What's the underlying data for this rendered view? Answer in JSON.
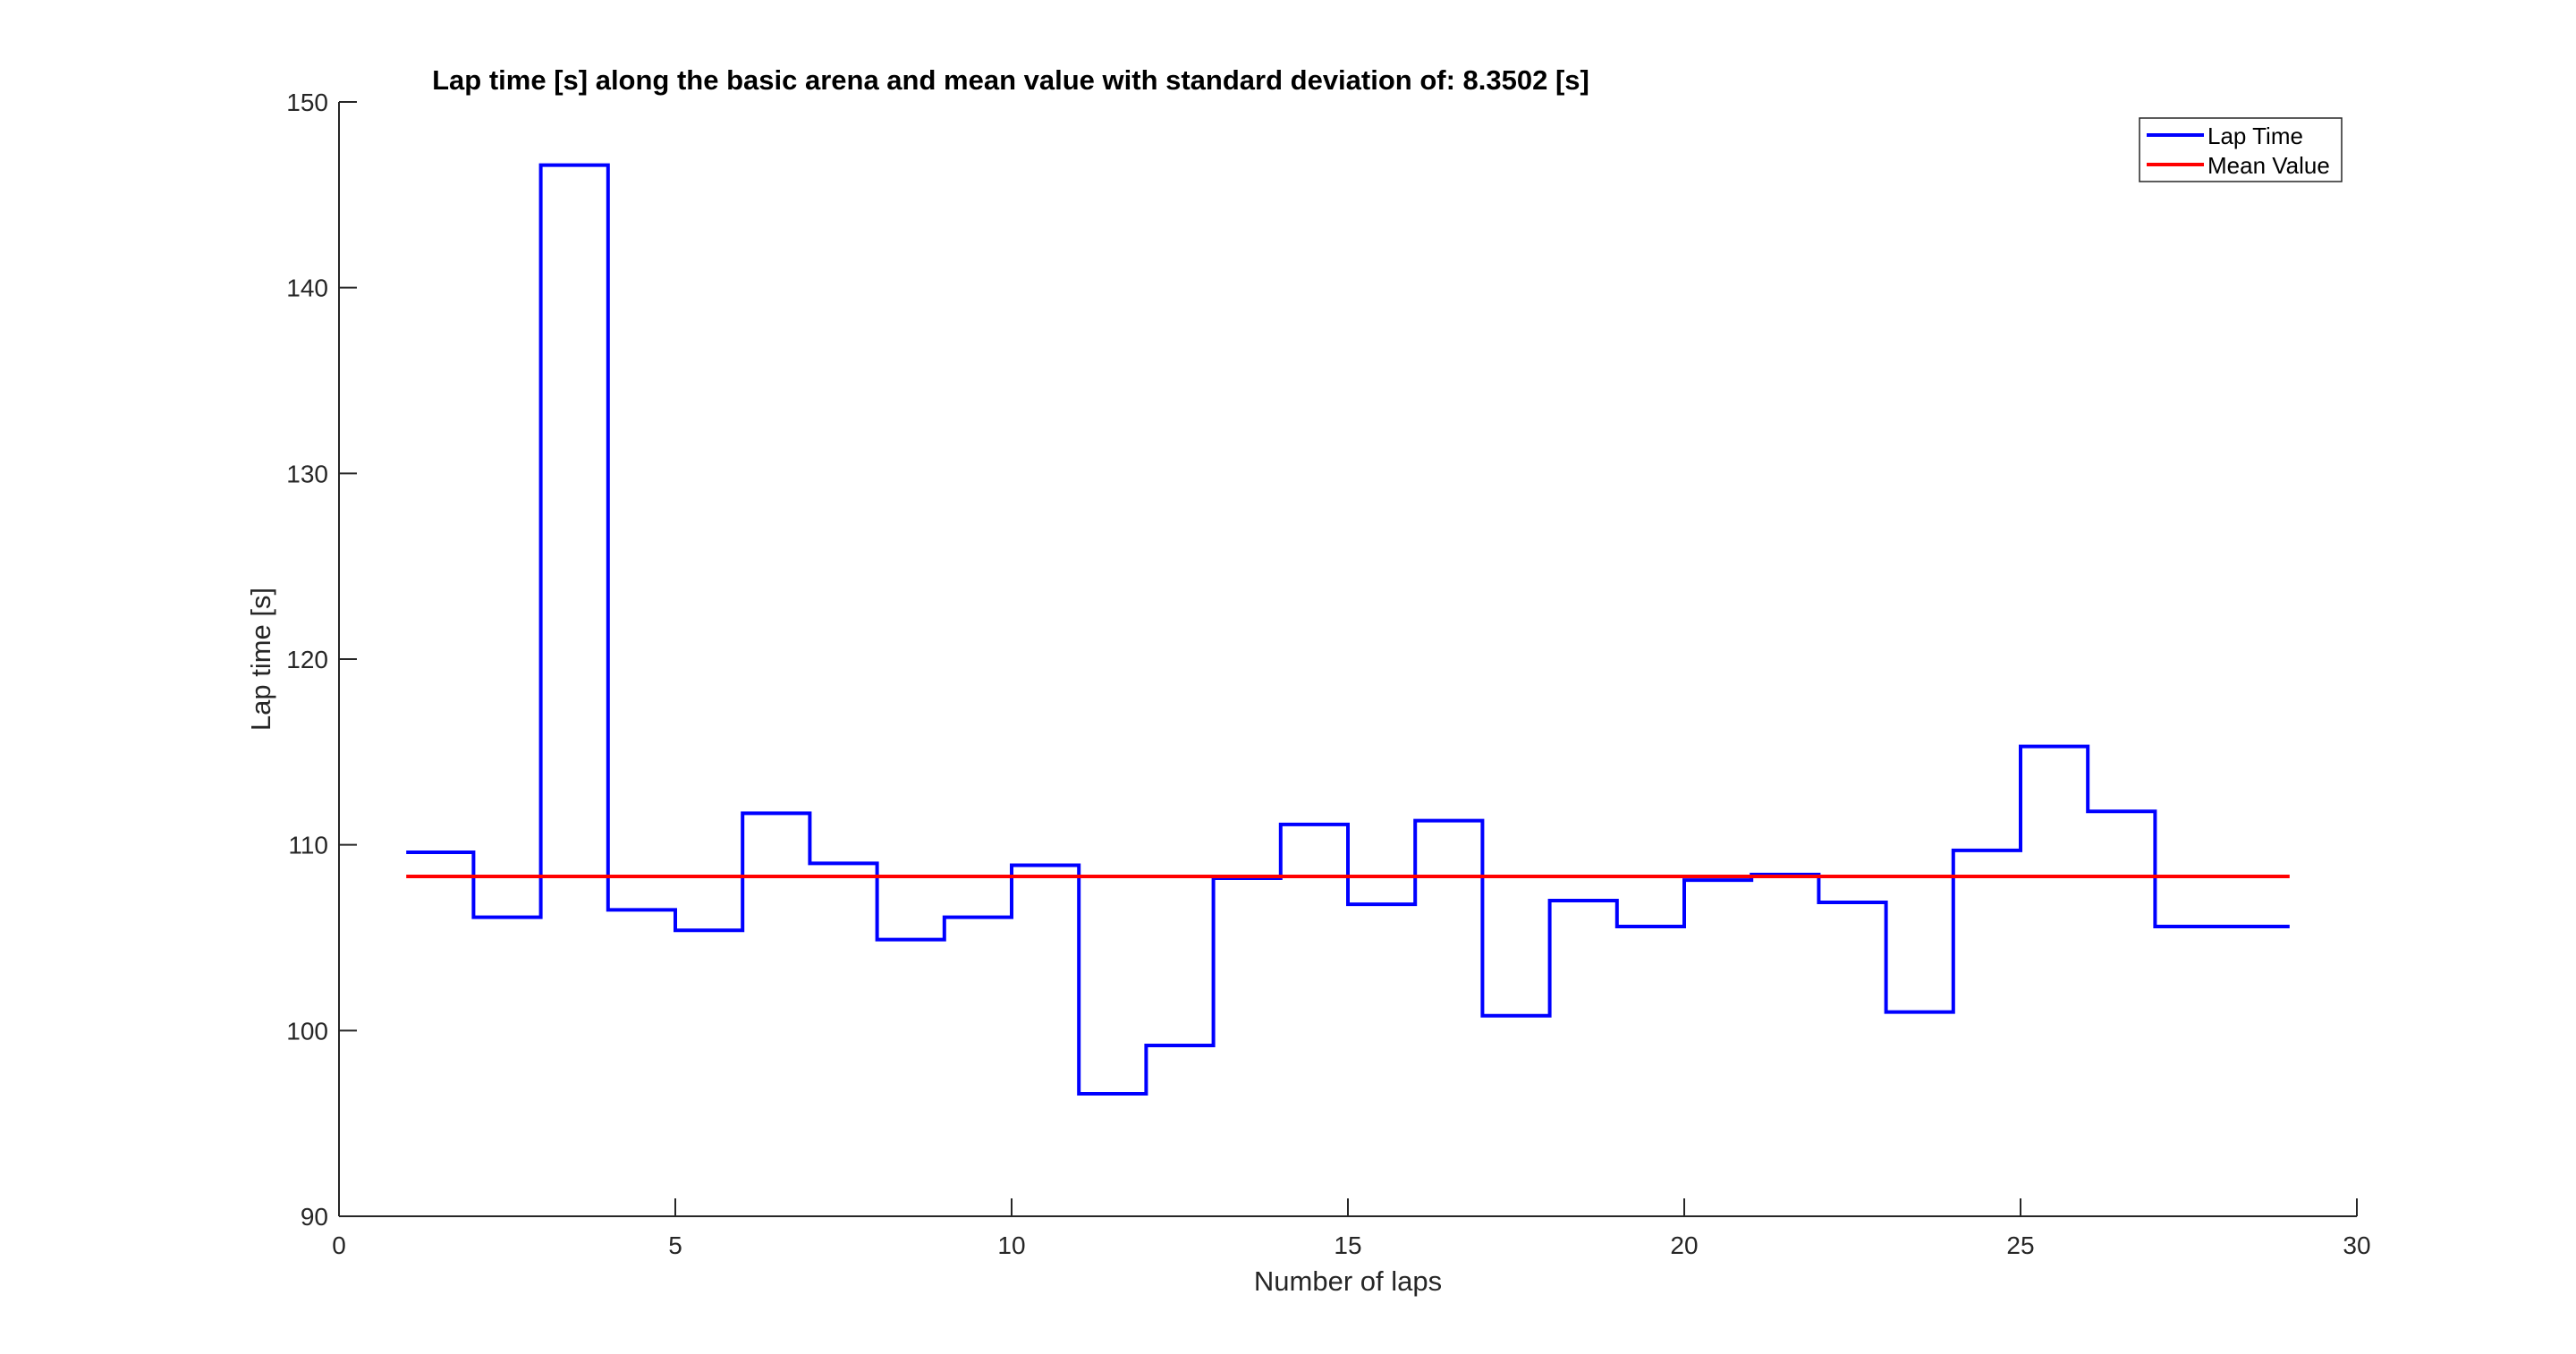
{
  "chart_data": {
    "type": "line",
    "title": "Lap time [s] along the basic arena and mean value with standard deviation of: 8.3502 [s]",
    "xlabel": "Number of laps",
    "ylabel": "Lap time [s]",
    "xlim": [
      0,
      30
    ],
    "ylim": [
      90,
      150
    ],
    "xticks": [
      "0",
      "5",
      "10",
      "15",
      "20",
      "25",
      "30"
    ],
    "yticks": [
      "90",
      "100",
      "110",
      "120",
      "130",
      "140",
      "150"
    ],
    "grid": false,
    "legend_position": "top-right",
    "series": [
      {
        "name": "Lap Time",
        "color": "#0000ff",
        "style": "stairs",
        "x": [
          1,
          2,
          3,
          4,
          5,
          6,
          7,
          8,
          9,
          10,
          11,
          12,
          13,
          14,
          15,
          16,
          17,
          18,
          19,
          20,
          21,
          22,
          23,
          24,
          25,
          26,
          27,
          28,
          29
        ],
        "values": [
          109.6,
          106.1,
          146.6,
          106.5,
          105.4,
          111.7,
          109.0,
          104.9,
          106.1,
          108.9,
          96.6,
          99.2,
          108.2,
          111.1,
          106.8,
          111.3,
          100.8,
          107.0,
          105.6,
          108.1,
          108.4,
          106.9,
          101.0,
          109.7,
          115.3,
          111.8,
          105.6,
          105.6,
          105.6
        ]
      },
      {
        "name": "Mean Value",
        "color": "#ff0000",
        "style": "line",
        "x": [
          1,
          29
        ],
        "values": [
          108.3,
          108.3
        ]
      }
    ]
  }
}
